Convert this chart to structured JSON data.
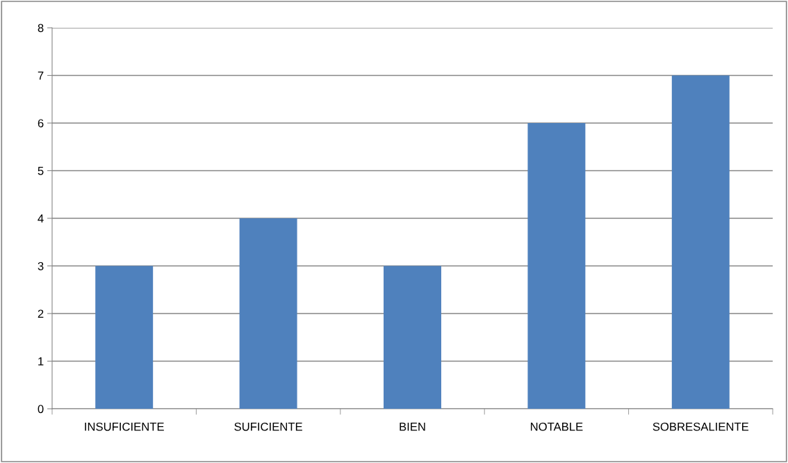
{
  "chart_data": {
    "type": "bar",
    "categories": [
      "INSUFICIENTE",
      "SUFICIENTE",
      "BIEN",
      "NOTABLE",
      "SOBRESALIENTE"
    ],
    "values": [
      3,
      4,
      3,
      6,
      7
    ],
    "color": "#4f81bd",
    "ylim": [
      0,
      8
    ],
    "yticks": [
      0,
      1,
      2,
      3,
      4,
      5,
      6,
      7,
      8
    ],
    "grid": "y",
    "legend": false
  }
}
